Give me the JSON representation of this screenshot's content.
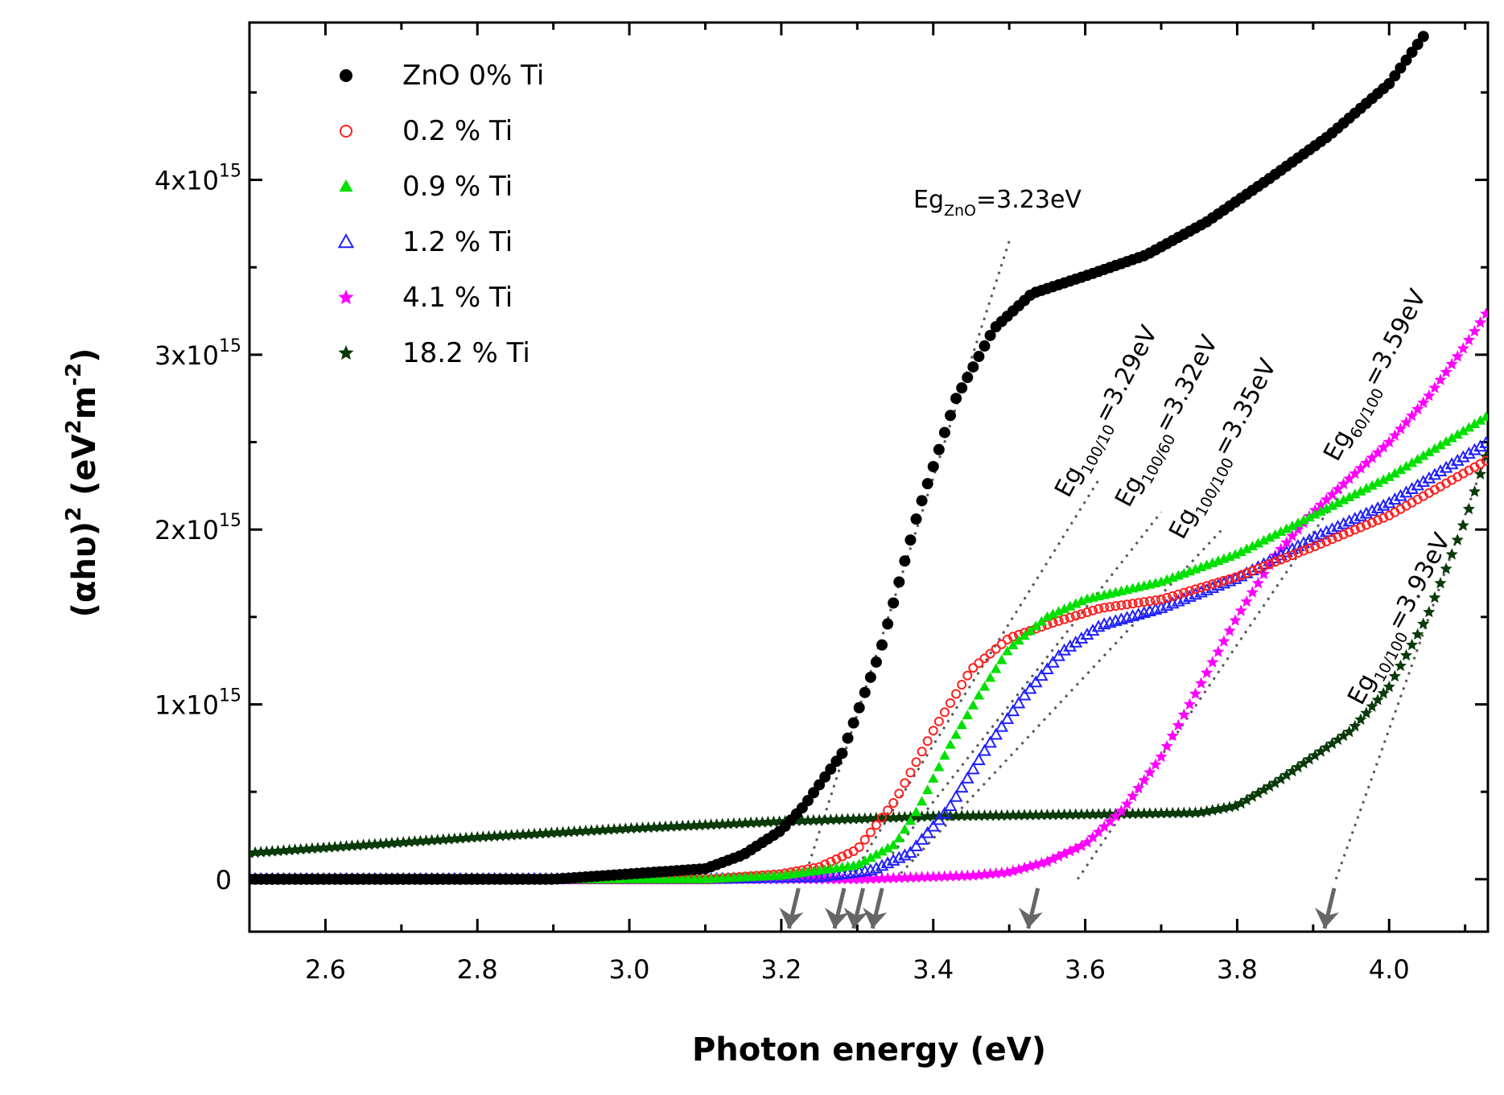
{
  "chart_data": {
    "type": "scatter",
    "title": "",
    "xlabel": "Photon energy (eV)",
    "ylabel_parts": {
      "base": "(αhυ)",
      "sup": "2",
      "unit_open": " (eV",
      "unit_sup1": "2",
      "unit_mid": "m",
      "unit_sup2": "-2",
      "unit_close": ")"
    },
    "xlim": [
      2.5,
      4.13
    ],
    "ylim": [
      -300000000000000.0,
      4900000000000000.0
    ],
    "x_ticks": [
      {
        "value": 2.6,
        "label": "2.6"
      },
      {
        "value": 2.8,
        "label": "2.8"
      },
      {
        "value": 3.0,
        "label": "3.0"
      },
      {
        "value": 3.2,
        "label": "3.2"
      },
      {
        "value": 3.4,
        "label": "3.4"
      },
      {
        "value": 3.6,
        "label": "3.6"
      },
      {
        "value": 3.8,
        "label": "3.8"
      },
      {
        "value": 4.0,
        "label": "4.0"
      }
    ],
    "y_ticks": [
      {
        "value": 0,
        "label": "0",
        "exp": ""
      },
      {
        "value": 1000000000000000.0,
        "label": "1x10",
        "exp": "15"
      },
      {
        "value": 2000000000000000.0,
        "label": "2x10",
        "exp": "15"
      },
      {
        "value": 3000000000000000.0,
        "label": "3x10",
        "exp": "15"
      },
      {
        "value": 4000000000000000.0,
        "label": "4x10",
        "exp": "15"
      }
    ],
    "legend_position": "top-left",
    "series": [
      {
        "name": "ZnO 0% Ti",
        "marker": "circle-filled",
        "color": "#000000",
        "points": [
          [
            2.5,
            0.0
          ],
          [
            2.9,
            0.0
          ],
          [
            3.0,
            30000000000000.0
          ],
          [
            3.1,
            60000000000000.0
          ],
          [
            3.15,
            140000000000000.0
          ],
          [
            3.2,
            280000000000000.0
          ],
          [
            3.23,
            420000000000000.0
          ],
          [
            3.28,
            720000000000000.0
          ],
          [
            3.33,
            1300000000000000.0
          ],
          [
            3.38,
            2100000000000000.0
          ],
          [
            3.43,
            2750000000000000.0
          ],
          [
            3.48,
            3150000000000000.0
          ],
          [
            3.53,
            3350000000000000.0
          ],
          [
            3.6,
            3450000000000000.0
          ],
          [
            3.68,
            3570000000000000.0
          ],
          [
            3.76,
            3760000000000000.0
          ],
          [
            3.84,
            4000000000000000.0
          ],
          [
            3.92,
            4250000000000000.0
          ],
          [
            4.0,
            4550000000000000.0
          ],
          [
            4.05,
            4850000000000000.0
          ]
        ]
      },
      {
        "name": "0.2 % Ti",
        "marker": "circle-open",
        "color": "#ff2020",
        "points": [
          [
            2.5,
            0.0
          ],
          [
            3.1,
            0.0
          ],
          [
            3.2,
            30000000000000.0
          ],
          [
            3.25,
            70000000000000.0
          ],
          [
            3.3,
            170000000000000.0
          ],
          [
            3.35,
            450000000000000.0
          ],
          [
            3.4,
            850000000000000.0
          ],
          [
            3.45,
            1200000000000000.0
          ],
          [
            3.5,
            1380000000000000.0
          ],
          [
            3.56,
            1470000000000000.0
          ],
          [
            3.62,
            1550000000000000.0
          ],
          [
            3.7,
            1600000000000000.0
          ],
          [
            3.8,
            1730000000000000.0
          ],
          [
            3.9,
            1900000000000000.0
          ],
          [
            4.0,
            2080000000000000.0
          ],
          [
            4.13,
            2400000000000000.0
          ]
        ]
      },
      {
        "name": "0.9 % Ti",
        "marker": "triangle-filled",
        "color": "#00e000",
        "points": [
          [
            2.5,
            0.0
          ],
          [
            3.1,
            0.0
          ],
          [
            3.2,
            20000000000000.0
          ],
          [
            3.3,
            80000000000000.0
          ],
          [
            3.35,
            200000000000000.0
          ],
          [
            3.38,
            400000000000000.0
          ],
          [
            3.42,
            750000000000000.0
          ],
          [
            3.46,
            1050000000000000.0
          ],
          [
            3.5,
            1320000000000000.0
          ],
          [
            3.55,
            1500000000000000.0
          ],
          [
            3.6,
            1600000000000000.0
          ],
          [
            3.7,
            1700000000000000.0
          ],
          [
            3.8,
            1860000000000000.0
          ],
          [
            3.9,
            2080000000000000.0
          ],
          [
            4.0,
            2300000000000000.0
          ],
          [
            4.13,
            2650000000000000.0
          ]
        ]
      },
      {
        "name": "1.2 % Ti",
        "marker": "triangle-open",
        "color": "#2020ff",
        "points": [
          [
            2.5,
            0.0
          ],
          [
            3.1,
            0.0
          ],
          [
            3.25,
            10000000000000.0
          ],
          [
            3.32,
            50000000000000.0
          ],
          [
            3.37,
            150000000000000.0
          ],
          [
            3.42,
            400000000000000.0
          ],
          [
            3.47,
            750000000000000.0
          ],
          [
            3.52,
            1050000000000000.0
          ],
          [
            3.57,
            1300000000000000.0
          ],
          [
            3.62,
            1450000000000000.0
          ],
          [
            3.7,
            1550000000000000.0
          ],
          [
            3.8,
            1720000000000000.0
          ],
          [
            3.9,
            1950000000000000.0
          ],
          [
            4.0,
            2150000000000000.0
          ],
          [
            4.13,
            2500000000000000.0
          ]
        ]
      },
      {
        "name": "4.1 % Ti",
        "marker": "star-filled",
        "color": "#ff00ff",
        "points": [
          [
            2.5,
            0.0
          ],
          [
            3.3,
            0.0
          ],
          [
            3.45,
            20000000000000.0
          ],
          [
            3.5,
            40000000000000.0
          ],
          [
            3.55,
            100000000000000.0
          ],
          [
            3.6,
            200000000000000.0
          ],
          [
            3.65,
            400000000000000.0
          ],
          [
            3.7,
            700000000000000.0
          ],
          [
            3.75,
            1100000000000000.0
          ],
          [
            3.8,
            1500000000000000.0
          ],
          [
            3.85,
            1850000000000000.0
          ],
          [
            3.9,
            2100000000000000.0
          ],
          [
            3.95,
            2300000000000000.0
          ],
          [
            4.0,
            2500000000000000.0
          ],
          [
            4.05,
            2750000000000000.0
          ],
          [
            4.1,
            3050000000000000.0
          ],
          [
            4.13,
            3250000000000000.0
          ]
        ]
      },
      {
        "name": "18.2 % Ti",
        "marker": "star-filled",
        "color": "#0a3a0a",
        "points": [
          [
            2.5,
            150000000000000.0
          ],
          [
            2.6,
            180000000000000.0
          ],
          [
            2.8,
            240000000000000.0
          ],
          [
            3.0,
            290000000000000.0
          ],
          [
            3.2,
            330000000000000.0
          ],
          [
            3.4,
            360000000000000.0
          ],
          [
            3.6,
            370000000000000.0
          ],
          [
            3.75,
            380000000000000.0
          ],
          [
            3.8,
            420000000000000.0
          ],
          [
            3.85,
            550000000000000.0
          ],
          [
            3.9,
            700000000000000.0
          ],
          [
            3.95,
            850000000000000.0
          ],
          [
            4.0,
            1100000000000000.0
          ],
          [
            4.05,
            1500000000000000.0
          ],
          [
            4.1,
            2050000000000000.0
          ],
          [
            4.13,
            2450000000000000.0
          ]
        ]
      }
    ],
    "tangent_lines": [
      {
        "x1": 3.23,
        "y1": 0.0,
        "x2": 3.5,
        "y2": 3650000000000000.0
      },
      {
        "x1": 3.29,
        "y1": 0.0,
        "x2": 3.62,
        "y2": 2300000000000000.0
      },
      {
        "x1": 3.32,
        "y1": 0.0,
        "x2": 3.7,
        "y2": 2100000000000000.0
      },
      {
        "x1": 3.35,
        "y1": 0.0,
        "x2": 3.78,
        "y2": 2000000000000000.0
      },
      {
        "x1": 3.59,
        "y1": 0.0,
        "x2": 3.95,
        "y2": 2300000000000000.0
      },
      {
        "x1": 3.93,
        "y1": 0.0,
        "x2": 4.13,
        "y2": 2450000000000000.0
      }
    ],
    "arrows_x": [
      3.21,
      3.27,
      3.295,
      3.32,
      3.525,
      3.915
    ],
    "annotations": [
      {
        "id": "zno",
        "main": "Eg",
        "sub": "ZnO",
        "rest": "=3.23eV"
      },
      {
        "id": "e10",
        "main": "Eg",
        "sub": "100/10",
        "rest": "=3.29eV"
      },
      {
        "id": "e60",
        "main": "Eg",
        "sub": "100/60",
        "rest": "=3.32eV"
      },
      {
        "id": "e100",
        "main": "Eg",
        "sub": "100/100",
        "rest": "=3.35eV"
      },
      {
        "id": "e60b",
        "main": "Eg",
        "sub": "60/100",
        "rest": "=3.59eV"
      },
      {
        "id": "e10b",
        "main": "Eg",
        "sub": "10/100",
        "rest": "=3.93eV"
      }
    ]
  }
}
